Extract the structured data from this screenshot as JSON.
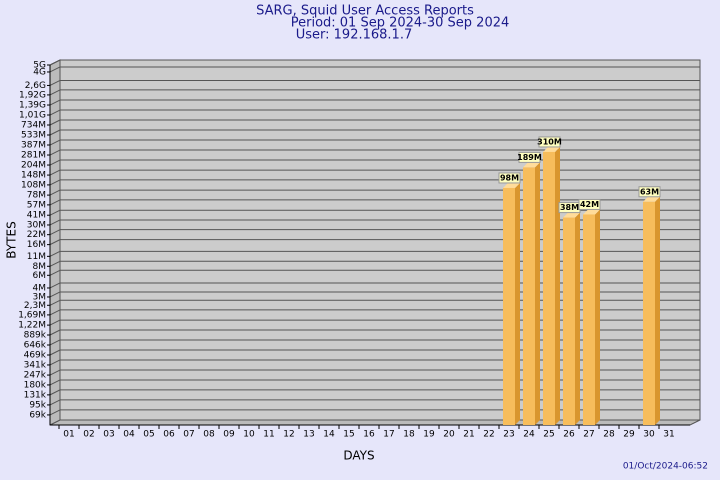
{
  "chart_data": {
    "type": "bar",
    "title": "SARG, Squid User Access Reports",
    "subtitle": "Period: 01 Sep 2024-30 Sep 2024",
    "user": "User: 192.168.1.7",
    "xlabel": "DAYS",
    "ylabel": "BYTES",
    "footer": "01/Oct/2024-06:52",
    "categories": [
      "01",
      "02",
      "03",
      "04",
      "05",
      "06",
      "07",
      "08",
      "09",
      "10",
      "11",
      "12",
      "13",
      "14",
      "15",
      "16",
      "17",
      "18",
      "19",
      "20",
      "21",
      "22",
      "23",
      "24",
      "25",
      "26",
      "27",
      "28",
      "29",
      "30",
      "31"
    ],
    "values": [
      null,
      null,
      null,
      null,
      null,
      null,
      null,
      null,
      null,
      null,
      null,
      null,
      null,
      null,
      null,
      null,
      null,
      null,
      null,
      null,
      null,
      null,
      98000000,
      189000000,
      310000000,
      38000000,
      42000000,
      null,
      null,
      63000000,
      null
    ],
    "value_labels": [
      null,
      null,
      null,
      null,
      null,
      null,
      null,
      null,
      null,
      null,
      null,
      null,
      null,
      null,
      null,
      null,
      null,
      null,
      null,
      null,
      null,
      null,
      "98M",
      "189M",
      "310M",
      "38M",
      "42M",
      null,
      null,
      "63M",
      null
    ],
    "color": "#f7bd5c",
    "log_scale": true,
    "grid": true,
    "ylim": [
      50000,
      5000000000
    ],
    "yticks": [
      {
        "value": 69000,
        "label": "69k"
      },
      {
        "value": 95000,
        "label": "95k"
      },
      {
        "value": 131000,
        "label": "131k"
      },
      {
        "value": 180000,
        "label": "180k"
      },
      {
        "value": 247000,
        "label": "247k"
      },
      {
        "value": 341000,
        "label": "341k"
      },
      {
        "value": 469000,
        "label": "469k"
      },
      {
        "value": 646000,
        "label": "646k"
      },
      {
        "value": 889000,
        "label": "889k"
      },
      {
        "value": 1220000,
        "label": "1,22M"
      },
      {
        "value": 1690000,
        "label": "1,69M"
      },
      {
        "value": 2300000,
        "label": "2,3M"
      },
      {
        "value": 3000000,
        "label": "3M"
      },
      {
        "value": 4000000,
        "label": "4M"
      },
      {
        "value": 6000000,
        "label": "6M"
      },
      {
        "value": 8000000,
        "label": "8M"
      },
      {
        "value": 11000000,
        "label": "11M"
      },
      {
        "value": 16000000,
        "label": "16M"
      },
      {
        "value": 22000000,
        "label": "22M"
      },
      {
        "value": 30000000,
        "label": "30M"
      },
      {
        "value": 41000000,
        "label": "41M"
      },
      {
        "value": 57000000,
        "label": "57M"
      },
      {
        "value": 78000000,
        "label": "78M"
      },
      {
        "value": 108000000,
        "label": "108M"
      },
      {
        "value": 148000000,
        "label": "148M"
      },
      {
        "value": 204000000,
        "label": "204M"
      },
      {
        "value": 281000000,
        "label": "281M"
      },
      {
        "value": 387000000,
        "label": "387M"
      },
      {
        "value": 533000000,
        "label": "533M"
      },
      {
        "value": 734000000,
        "label": "734M"
      },
      {
        "value": 1010000000,
        "label": "1,01G"
      },
      {
        "value": 1390000000,
        "label": "1,39G"
      },
      {
        "value": 1920000000,
        "label": "1,92G"
      },
      {
        "value": 2600000000,
        "label": "2,6G"
      },
      {
        "value": 4000000000,
        "label": "4G"
      },
      {
        "value": 5000000000,
        "label": "5G"
      }
    ]
  }
}
